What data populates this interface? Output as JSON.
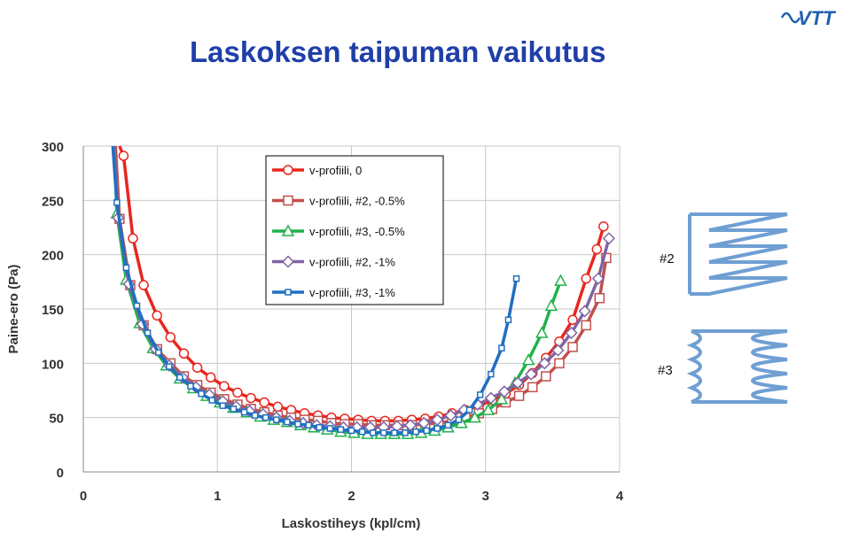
{
  "slide": {
    "title": "Laskoksen taipuman vaikutus",
    "logo_text": "VTT",
    "profile_label_2": "#2",
    "profile_label_3": "#3"
  },
  "colors": {
    "title": "#1f3ea8",
    "logo": "#1f5fb0",
    "profile_sketch": "#6f9fd3",
    "grid": "#c8c8c8"
  },
  "chart_data": {
    "type": "line",
    "xlabel": "Laskostiheys (kpl/cm)",
    "ylabel": "Paine-ero (Pa)",
    "xlim": [
      0,
      4
    ],
    "ylim": [
      0,
      300
    ],
    "xticks": [
      0,
      1,
      2,
      3,
      4
    ],
    "yticks": [
      0,
      50,
      100,
      150,
      200,
      250,
      300
    ],
    "grid": true,
    "legend_position": "top-left inside",
    "series": [
      {
        "name": "v-profiili, 0",
        "color": "#e8261f",
        "marker": "circle",
        "x": [
          0.27,
          0.3,
          0.37,
          0.45,
          0.55,
          0.65,
          0.75,
          0.85,
          0.95,
          1.05,
          1.15,
          1.25,
          1.35,
          1.45,
          1.55,
          1.65,
          1.75,
          1.85,
          1.95,
          2.05,
          2.15,
          2.25,
          2.35,
          2.45,
          2.55,
          2.65,
          2.75,
          2.85,
          2.95,
          3.05,
          3.15,
          3.25,
          3.35,
          3.45,
          3.55,
          3.65,
          3.75,
          3.83,
          3.88
        ],
        "y": [
          300,
          291,
          215,
          172,
          144,
          124,
          109,
          96,
          87,
          79,
          73,
          68,
          64,
          60,
          57,
          54,
          52,
          50,
          49,
          48,
          47,
          47,
          47,
          48,
          49,
          51,
          54,
          57,
          61,
          66,
          72,
          80,
          91,
          105,
          120,
          140,
          178,
          205,
          226
        ]
      },
      {
        "name": "v-profiili, #2, -0.5%",
        "color": "#c0504d",
        "marker": "square",
        "x": [
          0.24,
          0.27,
          0.35,
          0.45,
          0.55,
          0.65,
          0.75,
          0.85,
          0.95,
          1.05,
          1.15,
          1.25,
          1.35,
          1.45,
          1.55,
          1.65,
          1.75,
          1.85,
          1.95,
          2.05,
          2.15,
          2.25,
          2.35,
          2.45,
          2.55,
          2.65,
          2.75,
          2.85,
          2.95,
          3.05,
          3.15,
          3.25,
          3.35,
          3.45,
          3.55,
          3.65,
          3.75,
          3.85,
          3.9
        ],
        "y": [
          300,
          233,
          172,
          135,
          113,
          100,
          88,
          80,
          73,
          67,
          62,
          58,
          55,
          52,
          50,
          48,
          47,
          45,
          44,
          44,
          43,
          43,
          43,
          43,
          44,
          45,
          47,
          50,
          54,
          58,
          64,
          70,
          78,
          88,
          100,
          115,
          135,
          160,
          197
        ]
      },
      {
        "name": "v-profiili, #3, -0.5%",
        "color": "#22b14c",
        "marker": "triangle",
        "x": [
          0.23,
          0.25,
          0.32,
          0.42,
          0.52,
          0.62,
          0.72,
          0.82,
          0.92,
          1.02,
          1.12,
          1.22,
          1.32,
          1.42,
          1.52,
          1.62,
          1.72,
          1.82,
          1.92,
          2.02,
          2.12,
          2.22,
          2.32,
          2.42,
          2.52,
          2.62,
          2.72,
          2.82,
          2.92,
          3.02,
          3.12,
          3.22,
          3.32,
          3.42,
          3.49,
          3.56
        ],
        "y": [
          300,
          238,
          177,
          137,
          114,
          98,
          86,
          77,
          70,
          64,
          59,
          55,
          51,
          48,
          46,
          43,
          41,
          39,
          37,
          36,
          35,
          35,
          35,
          35,
          36,
          38,
          41,
          45,
          50,
          57,
          67,
          82,
          103,
          128,
          153,
          176
        ]
      },
      {
        "name": "v-profiili, #2, -1%",
        "color": "#8064a2",
        "marker": "diamond",
        "x": [
          0.23,
          0.26,
          0.34,
          0.44,
          0.54,
          0.64,
          0.74,
          0.84,
          0.94,
          1.04,
          1.14,
          1.24,
          1.34,
          1.44,
          1.54,
          1.64,
          1.74,
          1.84,
          1.94,
          2.04,
          2.14,
          2.24,
          2.34,
          2.44,
          2.54,
          2.64,
          2.74,
          2.84,
          2.94,
          3.04,
          3.14,
          3.24,
          3.34,
          3.44,
          3.54,
          3.64,
          3.74,
          3.84,
          3.92
        ],
        "y": [
          300,
          234,
          173,
          136,
          113,
          98,
          87,
          78,
          71,
          65,
          60,
          56,
          53,
          50,
          47,
          45,
          43,
          42,
          41,
          41,
          41,
          41,
          42,
          43,
          45,
          48,
          52,
          57,
          62,
          68,
          74,
          82,
          90,
          100,
          112,
          128,
          148,
          178,
          215
        ]
      },
      {
        "name": "v-profiili, #3, -1%",
        "color": "#1f6fc0",
        "marker": "square-filled",
        "x": [
          0.22,
          0.25,
          0.32,
          0.4,
          0.48,
          0.56,
          0.64,
          0.72,
          0.8,
          0.88,
          0.96,
          1.04,
          1.12,
          1.2,
          1.28,
          1.36,
          1.44,
          1.52,
          1.6,
          1.68,
          1.76,
          1.84,
          1.92,
          2.0,
          2.08,
          2.16,
          2.24,
          2.32,
          2.4,
          2.48,
          2.56,
          2.64,
          2.72,
          2.8,
          2.88,
          2.96,
          3.04,
          3.12,
          3.17,
          3.23
        ],
        "y": [
          300,
          248,
          188,
          153,
          128,
          110,
          97,
          87,
          79,
          72,
          66,
          61,
          58,
          55,
          52,
          50,
          48,
          46,
          44,
          43,
          41,
          40,
          39,
          38,
          37,
          36,
          36,
          36,
          36,
          37,
          38,
          40,
          43,
          48,
          57,
          71,
          90,
          114,
          140,
          178
        ]
      }
    ]
  }
}
